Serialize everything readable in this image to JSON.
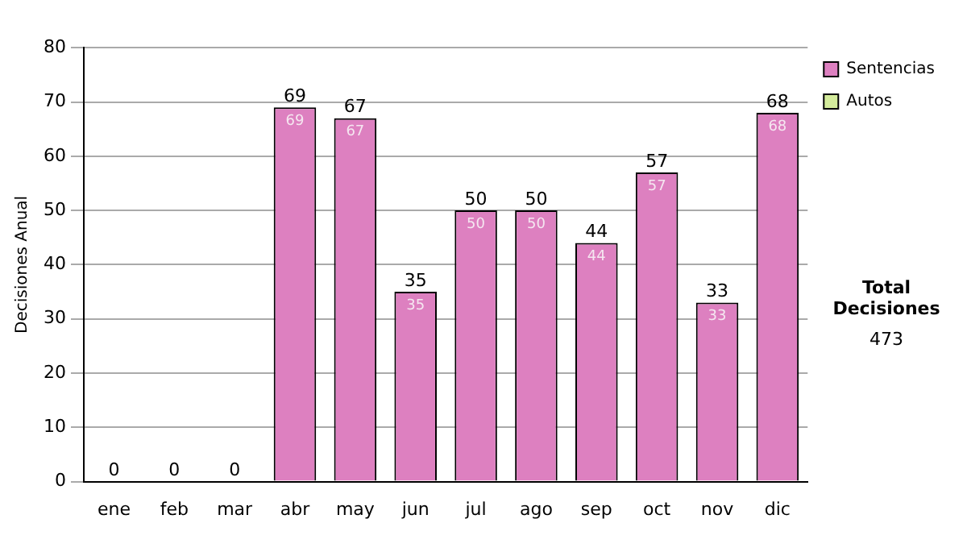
{
  "chart_data": {
    "type": "bar",
    "ylabel": "Decisiones Anual",
    "categories": [
      "ene",
      "feb",
      "mar",
      "abr",
      "may",
      "jun",
      "jul",
      "ago",
      "sep",
      "oct",
      "nov",
      "dic"
    ],
    "series": [
      {
        "name": "Sentencias",
        "color": "#dd80c0",
        "values": [
          0,
          0,
          0,
          69,
          67,
          35,
          50,
          50,
          44,
          57,
          33,
          68
        ],
        "value_labels": [
          null,
          null,
          null,
          "69",
          "67",
          "35",
          "50",
          "50",
          "44",
          "57",
          "33",
          "68"
        ]
      },
      {
        "name": "Autos",
        "color": "#d4ec9c",
        "values": [
          0,
          0,
          0,
          0,
          0,
          0,
          0,
          0,
          0,
          0,
          0,
          0
        ]
      }
    ],
    "stacked": true,
    "totals": [
      "0",
      "0",
      "0",
      "69",
      "67",
      "35",
      "50",
      "50",
      "44",
      "57",
      "33",
      "68"
    ],
    "ylim": [
      0,
      80
    ],
    "yticks": [
      0,
      10,
      20,
      30,
      40,
      50,
      60,
      70,
      80
    ],
    "grid": "y",
    "legend": "right",
    "annotations": [
      "Total Decisiones",
      "473"
    ]
  }
}
